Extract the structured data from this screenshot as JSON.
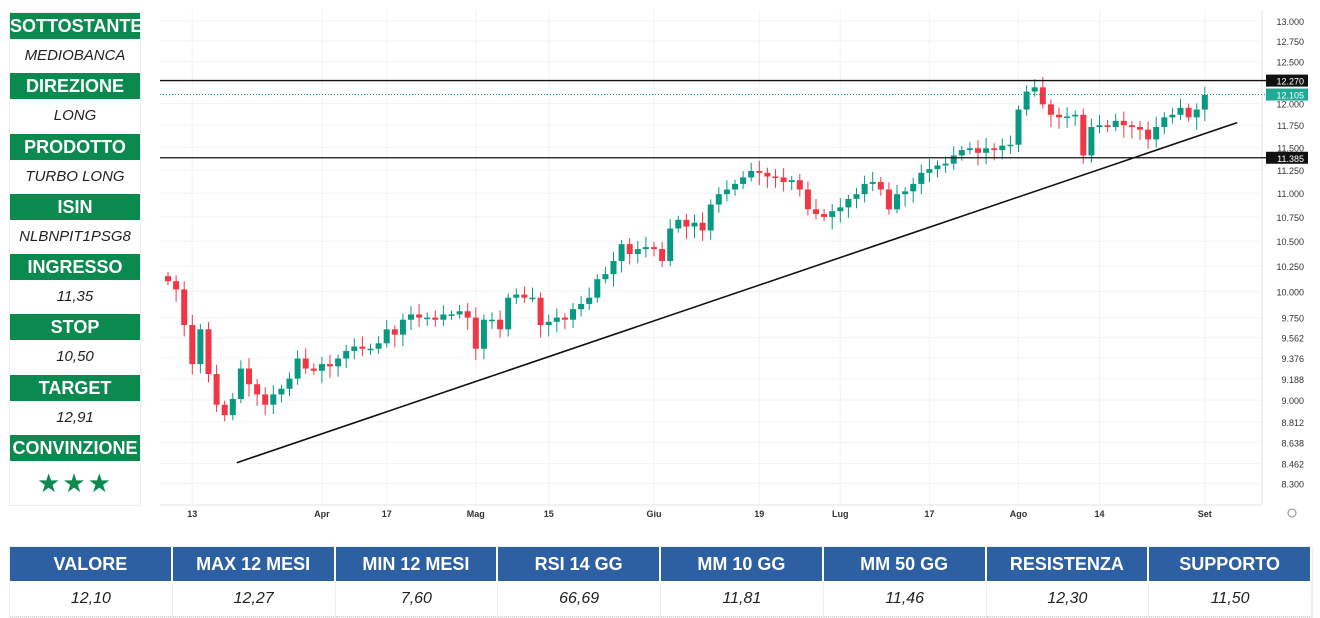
{
  "panel": [
    {
      "label": "SOTTOSTANTE",
      "value": "MEDIOBANCA"
    },
    {
      "label": "DIREZIONE",
      "value": "LONG"
    },
    {
      "label": "PRODOTTO",
      "value": "TURBO LONG"
    },
    {
      "label": "ISIN",
      "value": "NLBNPIT1PSG8"
    },
    {
      "label": "INGRESSO",
      "value": "11,35"
    },
    {
      "label": "STOP",
      "value": "10,50"
    },
    {
      "label": "TARGET",
      "value": "12,91"
    },
    {
      "label": "CONVINZIONE",
      "value": "★★★"
    }
  ],
  "stats": {
    "headers": [
      "VALORE",
      "MAX 12 MESI",
      "MIN 12 MESI",
      "RSI 14 GG",
      "MM 10 GG",
      "MM 50 GG",
      "RESISTENZA",
      "SUPPORTO"
    ],
    "values": [
      "12,10",
      "12,27",
      "7,60",
      "66,69",
      "11,81",
      "11,46",
      "12,30",
      "11,50"
    ]
  },
  "colors": {
    "up": "#089981",
    "down": "#f23645",
    "green": "#0b8a50",
    "blue": "#2d5fa3"
  },
  "chart_data": {
    "type": "candlestick",
    "y_scale": "log",
    "ylim": [
      8.3,
      13.0
    ],
    "y_ticks": [
      "13.000",
      "12.750",
      "12.500",
      "12.000",
      "11.750",
      "11.500",
      "11.250",
      "11.000",
      "10.750",
      "10.500",
      "10.250",
      "10.000",
      "9.750",
      "9.562",
      "9.376",
      "9.188",
      "9.000",
      "8.812",
      "8.638",
      "8.462",
      "8.300"
    ],
    "x_ticks": [
      {
        "label": "13",
        "i": 3
      },
      {
        "label": "Apr",
        "i": 19
      },
      {
        "label": "17",
        "i": 27
      },
      {
        "label": "Mag",
        "i": 38
      },
      {
        "label": "15",
        "i": 47
      },
      {
        "label": "Giu",
        "i": 60
      },
      {
        "label": "19",
        "i": 73
      },
      {
        "label": "Lug",
        "i": 83
      },
      {
        "label": "17",
        "i": 94
      },
      {
        "label": "Ago",
        "i": 105
      },
      {
        "label": "14",
        "i": 115
      },
      {
        "label": "Set",
        "i": 128
      }
    ],
    "open_first": 10.15,
    "closes": [
      10.1,
      10.02,
      9.68,
      9.32,
      9.64,
      9.23,
      8.96,
      8.87,
      9.01,
      9.28,
      9.14,
      9.05,
      8.96,
      9.05,
      9.1,
      9.19,
      9.37,
      9.28,
      9.26,
      9.32,
      9.3,
      9.37,
      9.44,
      9.48,
      9.46,
      9.46,
      9.51,
      9.64,
      9.59,
      9.73,
      9.78,
      9.75,
      9.75,
      9.73,
      9.78,
      9.78,
      9.81,
      9.75,
      9.46,
      9.73,
      9.73,
      9.64,
      9.94,
      9.97,
      9.94,
      9.94,
      9.68,
      9.71,
      9.75,
      9.73,
      9.83,
      9.88,
      9.94,
      10.12,
      10.17,
      10.3,
      10.47,
      10.37,
      10.42,
      10.44,
      10.42,
      10.3,
      10.63,
      10.72,
      10.65,
      10.69,
      10.61,
      10.88,
      10.99,
      11.04,
      11.1,
      11.17,
      11.24,
      11.22,
      11.18,
      11.17,
      11.12,
      11.14,
      11.04,
      10.83,
      10.78,
      10.75,
      10.81,
      10.85,
      10.94,
      10.99,
      11.1,
      11.12,
      11.04,
      10.83,
      10.99,
      11.02,
      11.1,
      11.22,
      11.26,
      11.3,
      11.32,
      11.41,
      11.47,
      11.49,
      11.44,
      11.49,
      11.47,
      11.52,
      11.53,
      11.93,
      12.14,
      12.19,
      11.99,
      11.87,
      11.84,
      11.85,
      11.87,
      11.41,
      11.73,
      11.75,
      11.73,
      11.8,
      11.75,
      11.73,
      11.7,
      11.59,
      11.73,
      11.84,
      11.87,
      11.95,
      11.84,
      11.93,
      12.1
    ],
    "levels": [
      {
        "label": "12.270",
        "value": 12.27,
        "style": "solid"
      },
      {
        "label": "11.385",
        "value": 11.385,
        "style": "solid"
      }
    ],
    "last_price": {
      "label": "12.105",
      "value": 12.105
    },
    "trendline": {
      "from": {
        "i": 8.5,
        "price": 8.47
      },
      "to": {
        "i": 132,
        "price": 11.78
      }
    }
  }
}
